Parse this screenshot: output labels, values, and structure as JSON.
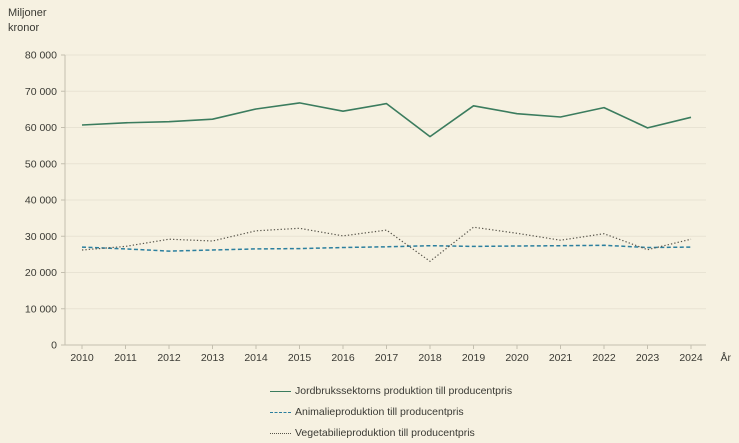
{
  "page": {
    "background": "#f6f1e1",
    "text_color": "#3a3a34",
    "y_axis_unit_line1": "Miljoner",
    "y_axis_unit_line2": "kronor",
    "x_axis_label": "År"
  },
  "chart_data": {
    "type": "line",
    "title": "",
    "xlabel": "År",
    "ylabel": "Miljoner kronor",
    "categories": [
      "2010",
      "2011",
      "2012",
      "2013",
      "2014",
      "2015",
      "2016",
      "2017",
      "2018",
      "2019",
      "2020",
      "2021",
      "2022",
      "2023",
      "2024"
    ],
    "ylim": [
      0,
      80000
    ],
    "ytick_step": 10000,
    "ytick_labels": [
      "0",
      "10 000",
      "20 000",
      "30 000",
      "40 000",
      "50 000",
      "60 000",
      "70 000",
      "80 000"
    ],
    "grid": "horizontal",
    "legend_position": "bottom",
    "series": [
      {
        "name": "Jordbrukssektorns produktion till producentpris",
        "style": "solid",
        "color": "#3b7c5e",
        "values": [
          60700,
          61300,
          61600,
          62300,
          65100,
          66800,
          64500,
          66600,
          57500,
          66000,
          63800,
          62900,
          65500,
          59900,
          62800
        ]
      },
      {
        "name": "Animalieproduktion till producentpris",
        "style": "dashed",
        "color": "#2b7f9e",
        "values": [
          27000,
          26500,
          25900,
          26200,
          26500,
          26600,
          26900,
          27100,
          27400,
          27200,
          27300,
          27400,
          27500,
          26900,
          27000
        ]
      },
      {
        "name": "Vegetabilieproduktion till producentpris",
        "style": "dotted",
        "color": "#57544a",
        "values": [
          26200,
          27200,
          29200,
          28700,
          31500,
          32200,
          30100,
          31700,
          23100,
          32500,
          30800,
          28900,
          30700,
          26300,
          29200
        ]
      }
    ],
    "colors": {
      "background": "#f6f1e1",
      "gridline": "#e8e3d3",
      "axis": "#c4bfaf"
    }
  }
}
